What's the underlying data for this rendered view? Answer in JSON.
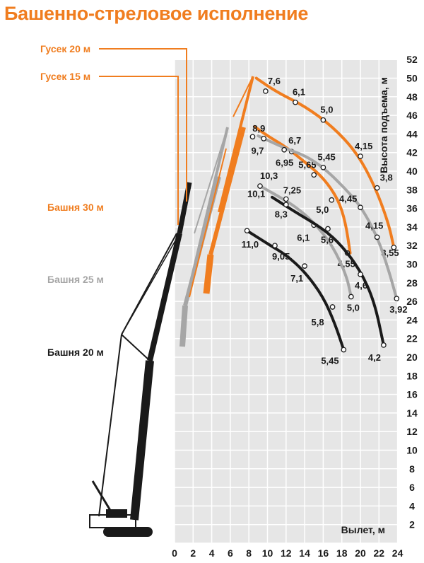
{
  "page_title": "Башенно-стреловое исполнение",
  "colors": {
    "orange": "#f07d1f",
    "gray": "#a6a6a6",
    "black": "#1a1a1a",
    "grid_bg": "#e6e6e6"
  },
  "chart_data": {
    "type": "line",
    "xlabel": "Вылет, м",
    "ylabel": "Высота подъема, м",
    "xlim": [
      0,
      24
    ],
    "ylim": [
      0,
      52
    ],
    "x_ticks": [
      "0",
      "2",
      "4",
      "6",
      "8",
      "10",
      "12",
      "14",
      "16",
      "18",
      "20",
      "22",
      "24"
    ],
    "y_ticks": [
      "2",
      "4",
      "6",
      "8",
      "10",
      "12",
      "14",
      "16",
      "18",
      "20",
      "22",
      "24",
      "26",
      "28",
      "30",
      "32",
      "34",
      "36",
      "38",
      "40",
      "42",
      "44",
      "46",
      "48",
      "50",
      "52"
    ],
    "grid": true,
    "configuration_labels": [
      {
        "text": "Гусек 20 м",
        "color": "orange"
      },
      {
        "text": "Гусек 15 м",
        "color": "orange"
      },
      {
        "text": "Башня 30 м",
        "color": "orange"
      },
      {
        "text": "Башня 25 м",
        "color": "gray"
      },
      {
        "text": "Башня 20 м",
        "color": "black"
      }
    ],
    "series": [
      {
        "color": "orange",
        "curve": [
          [
            8.8,
            50.0
          ],
          [
            11,
            48.5
          ],
          [
            14,
            47.0
          ],
          [
            17,
            44.8
          ],
          [
            19.6,
            42.0
          ],
          [
            21.5,
            38.5
          ],
          [
            23,
            34.5
          ],
          [
            23.6,
            31.8
          ]
        ],
        "points": [
          {
            "x": 9.8,
            "y": 48.6,
            "label": "7,6"
          },
          {
            "x": 13.0,
            "y": 47.4,
            "label": "6,1"
          },
          {
            "x": 16.0,
            "y": 45.5,
            "label": "5,0"
          },
          {
            "x": 20.0,
            "y": 41.6,
            "label": "4,15"
          },
          {
            "x": 21.8,
            "y": 38.2,
            "label": "3,8"
          },
          {
            "x": 23.6,
            "y": 31.8,
            "label": "3,55"
          }
        ]
      },
      {
        "color": "orange",
        "curve": [
          [
            8.6,
            44.8
          ],
          [
            10,
            43.8
          ],
          [
            12,
            42.6
          ],
          [
            14,
            41.0
          ],
          [
            16,
            39.3
          ],
          [
            17.6,
            37.0
          ],
          [
            18.4,
            34.5
          ],
          [
            18.9,
            31.2
          ]
        ],
        "points": [
          {
            "x": 8.4,
            "y": 43.7,
            "label": "9,7"
          },
          {
            "x": 12.6,
            "y": 42.1,
            "label": "6,95"
          },
          {
            "x": 15.0,
            "y": 39.6,
            "label": "5,65"
          },
          {
            "x": 16.9,
            "y": 36.9,
            "label": "5,0"
          },
          {
            "x": 18.6,
            "y": 31.2,
            "label": "4,55"
          }
        ]
      },
      {
        "color": "gray",
        "curve": [
          [
            9.0,
            43.8
          ],
          [
            12,
            42.4
          ],
          [
            14,
            41.7
          ],
          [
            16,
            40.4
          ],
          [
            18,
            38.5
          ],
          [
            20,
            36.3
          ],
          [
            21.8,
            33.0
          ],
          [
            23,
            29.5
          ],
          [
            23.9,
            26.3
          ]
        ],
        "points": [
          {
            "x": 9.6,
            "y": 43.5,
            "label": "8,9"
          },
          {
            "x": 11.8,
            "y": 42.3,
            "label": "6,7"
          },
          {
            "x": 16.0,
            "y": 40.4,
            "label": "5,45"
          },
          {
            "x": 20.0,
            "y": 36.1,
            "label": "4,45"
          },
          {
            "x": 21.8,
            "y": 32.9,
            "label": "4,15"
          },
          {
            "x": 23.9,
            "y": 26.3,
            "label": "3,92"
          }
        ]
      },
      {
        "color": "gray",
        "curve": [
          [
            9.2,
            38.4
          ],
          [
            11,
            37.4
          ],
          [
            13,
            36.2
          ],
          [
            15,
            34.5
          ],
          [
            17,
            32.0
          ],
          [
            18.5,
            28.8
          ],
          [
            19,
            26.5
          ]
        ],
        "points": [
          {
            "x": 9.2,
            "y": 38.4,
            "label": "10,3"
          },
          {
            "x": 12.0,
            "y": 37.0,
            "label": "7,25"
          },
          {
            "x": 15.0,
            "y": 34.2,
            "label": "6,1"
          },
          {
            "x": 19.0,
            "y": 26.5,
            "label": "5,0"
          }
        ]
      },
      {
        "color": "black",
        "curve": [
          [
            10.5,
            37.2
          ],
          [
            13,
            35.6
          ],
          [
            16,
            33.8
          ],
          [
            18,
            32.0
          ],
          [
            20,
            29.3
          ],
          [
            21.5,
            26.0
          ],
          [
            22.5,
            21.3
          ]
        ],
        "points": [
          {
            "x": 12.0,
            "y": 36.4,
            "label": "8,3"
          },
          {
            "x": 16.5,
            "y": 33.8,
            "label": "5,6"
          },
          {
            "x": 20.0,
            "y": 28.9,
            "label": "4,6"
          },
          {
            "x": 22.5,
            "y": 21.3,
            "label": "4,2"
          }
        ]
      },
      {
        "color": "black",
        "curve": [
          [
            7.8,
            33.6
          ],
          [
            10,
            32.2
          ],
          [
            12,
            31.0
          ],
          [
            14,
            29.2
          ],
          [
            16,
            26.5
          ],
          [
            17.3,
            23.5
          ],
          [
            18.2,
            20.8
          ]
        ],
        "points": [
          {
            "x": 7.8,
            "y": 33.6,
            "label": "11,0"
          },
          {
            "x": 10.8,
            "y": 32.0,
            "label": "9,05"
          },
          {
            "x": 14.0,
            "y": 29.8,
            "label": "7,1"
          },
          {
            "x": 17.0,
            "y": 25.4,
            "label": "5,8"
          },
          {
            "x": 18.2,
            "y": 20.8,
            "label": "5,45"
          }
        ]
      }
    ],
    "extra_labels": [
      {
        "x": 9.2,
        "y": 37.6,
        "label": "10,1"
      }
    ]
  }
}
